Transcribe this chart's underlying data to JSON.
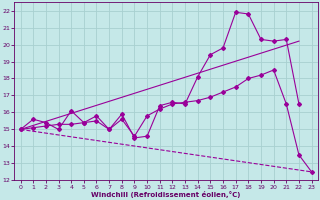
{
  "xlabel": "Windchill (Refroidissement éolien,°C)",
  "background_color": "#c5e8e8",
  "grid_color": "#a8d0d0",
  "line_color": "#990099",
  "xlim": [
    -0.5,
    23.5
  ],
  "ylim": [
    12,
    22.5
  ],
  "xticks": [
    0,
    1,
    2,
    3,
    4,
    5,
    6,
    7,
    8,
    9,
    10,
    11,
    12,
    13,
    14,
    15,
    16,
    17,
    18,
    19,
    20,
    21,
    22,
    23
  ],
  "yticks": [
    12,
    13,
    14,
    15,
    16,
    17,
    18,
    19,
    20,
    21,
    22
  ],
  "line1_x": [
    0,
    1,
    2,
    3,
    4,
    5,
    6,
    7,
    8,
    9,
    10,
    11,
    12,
    13,
    14,
    15,
    16,
    17,
    18,
    19,
    20,
    21,
    22
  ],
  "line1_y": [
    15.0,
    15.6,
    15.4,
    15.0,
    16.1,
    15.4,
    15.8,
    15.0,
    15.9,
    14.5,
    14.6,
    16.4,
    16.6,
    16.5,
    18.1,
    19.4,
    19.8,
    21.9,
    21.8,
    20.3,
    20.2,
    20.3,
    16.5
  ],
  "line2_x": [
    0,
    22
  ],
  "line2_y": [
    15.0,
    20.2
  ],
  "line3_x": [
    0,
    23
  ],
  "line3_y": [
    15.0,
    12.5
  ],
  "line4_x": [
    0,
    1,
    2,
    3,
    4,
    5,
    6,
    7,
    8,
    9,
    10,
    11,
    12,
    13,
    14,
    15,
    16,
    17,
    18,
    19,
    20,
    21,
    22,
    23
  ],
  "line4_y": [
    15.0,
    15.1,
    15.2,
    15.3,
    15.3,
    15.4,
    15.5,
    15.0,
    15.6,
    14.6,
    15.8,
    16.2,
    16.5,
    16.6,
    16.7,
    16.9,
    17.2,
    17.5,
    18.0,
    18.2,
    18.5,
    16.5,
    13.5,
    12.5
  ]
}
